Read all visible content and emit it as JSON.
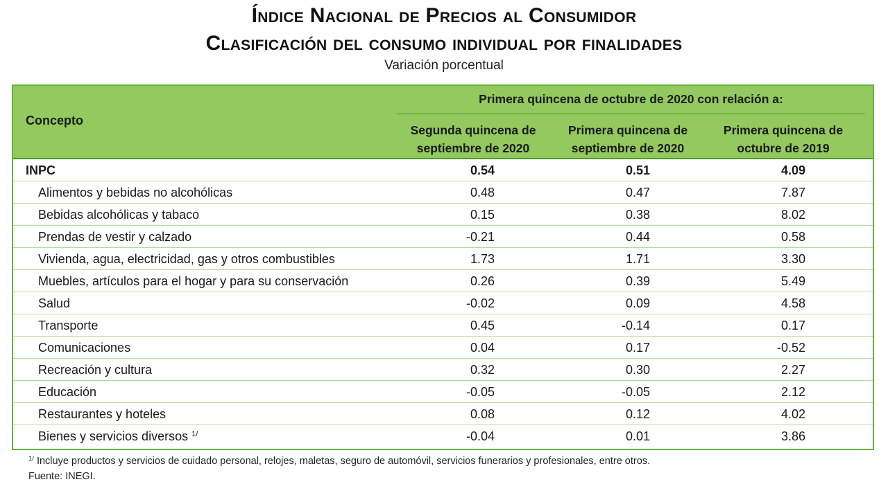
{
  "title_line1": "Índice Nacional de Precios al Consumidor",
  "title_line2": "Clasificación del consumo individual por finalidades",
  "subtitle": "Variación porcentual",
  "header": {
    "concept": "Concepto",
    "span_label": "Primera quincena de octubre de 2020 con relación a:",
    "col1": "Segunda quincena de septiembre de 2020",
    "col2": "Primera quincena de septiembre de 2020",
    "col3": "Primera quincena de octubre de 2019"
  },
  "accent_color": "#93c95e",
  "rows": [
    {
      "label": "INPC",
      "v1": "0.54",
      "v2": "0.51",
      "v3": "4.09",
      "bold": true
    },
    {
      "label": "Alimentos y bebidas no alcohólicas",
      "v1": "0.48",
      "v2": "0.47",
      "v3": "7.87"
    },
    {
      "label": "Bebidas alcohólicas y tabaco",
      "v1": "0.15",
      "v2": "0.38",
      "v3": "8.02"
    },
    {
      "label": "Prendas de vestir y calzado",
      "v1": "-0.21",
      "v2": "0.44",
      "v3": "0.58"
    },
    {
      "label": "Vivienda, agua, electricidad, gas y otros combustibles",
      "v1": "1.73",
      "v2": "1.71",
      "v3": "3.30"
    },
    {
      "label": "Muebles, artículos para el hogar y para su conservación",
      "v1": "0.26",
      "v2": "0.39",
      "v3": "5.49"
    },
    {
      "label": "Salud",
      "v1": "-0.02",
      "v2": "0.09",
      "v3": "4.58"
    },
    {
      "label": "Transporte",
      "v1": "0.45",
      "v2": "-0.14",
      "v3": "0.17"
    },
    {
      "label": "Comunicaciones",
      "v1": "0.04",
      "v2": "0.17",
      "v3": "-0.52"
    },
    {
      "label": "Recreación y cultura",
      "v1": "0.32",
      "v2": "0.30",
      "v3": "2.27"
    },
    {
      "label": "Educación",
      "v1": "-0.05",
      "v2": "-0.05",
      "v3": "2.12"
    },
    {
      "label": "Restaurantes y hoteles",
      "v1": "0.08",
      "v2": "0.12",
      "v3": "4.02"
    },
    {
      "label": "Bienes y servicios diversos",
      "footnote_mark": "1/",
      "v1": "-0.04",
      "v2": "0.01",
      "v3": "3.86"
    }
  ],
  "footnote_mark": "1/",
  "footnote": "Incluye productos y servicios de cuidado personal, relojes, maletas, seguro de automóvil, servicios funerarios y profesionales, entre otros.",
  "source": "Fuente: INEGI."
}
